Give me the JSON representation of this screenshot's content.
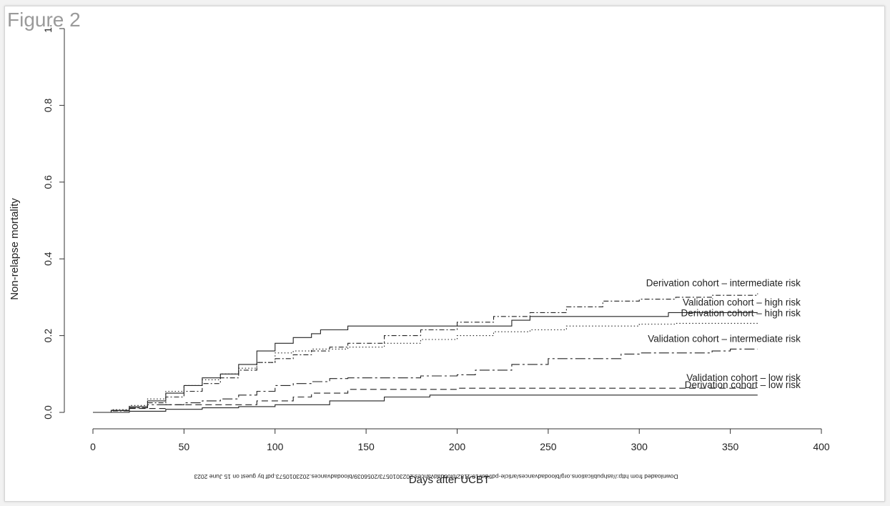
{
  "figure_label": "Figure 2",
  "watermark": "Downloaded from http://ashpublications.org/bloodadvances/article-pdf/doi/10.1182/bloodadvances.2023010573/2056039/bloodadvances.2023010573.pdf by guest on 15 June 2023",
  "chart_data": {
    "type": "line",
    "title": "",
    "xlabel": "Days after UCBT",
    "ylabel": "Non-relapse mortality",
    "xlim": [
      0,
      400
    ],
    "ylim": [
      0,
      1
    ],
    "xticks": [
      0,
      50,
      100,
      150,
      200,
      250,
      300,
      350,
      400
    ],
    "yticks": [
      0.0,
      0.2,
      0.4,
      0.6,
      0.8,
      1.0
    ],
    "ytick_labels": [
      "0.0",
      "0.2",
      "0.4",
      "0.6",
      "0.8",
      "1."
    ],
    "grid": false,
    "legend": "labels at line ends",
    "series": [
      {
        "name": "Derivation cohort – intermediate risk",
        "linestyle": "dashdot",
        "x": [
          0,
          10,
          20,
          30,
          40,
          50,
          60,
          70,
          80,
          90,
          100,
          110,
          120,
          130,
          140,
          160,
          180,
          200,
          220,
          240,
          260,
          280,
          300,
          320,
          340,
          365
        ],
        "y": [
          0,
          0.004,
          0.012,
          0.025,
          0.04,
          0.055,
          0.075,
          0.09,
          0.11,
          0.13,
          0.14,
          0.15,
          0.16,
          0.17,
          0.18,
          0.2,
          0.215,
          0.235,
          0.25,
          0.26,
          0.275,
          0.29,
          0.295,
          0.3,
          0.305,
          0.31
        ]
      },
      {
        "name": "Validation cohort – high risk",
        "linestyle": "solid",
        "x": [
          0,
          10,
          20,
          30,
          40,
          50,
          60,
          70,
          80,
          90,
          100,
          110,
          120,
          125,
          140,
          200,
          230,
          240,
          316,
          365
        ],
        "y": [
          0,
          0.005,
          0.015,
          0.03,
          0.05,
          0.07,
          0.09,
          0.1,
          0.125,
          0.16,
          0.18,
          0.195,
          0.205,
          0.215,
          0.225,
          0.225,
          0.24,
          0.25,
          0.26,
          0.26
        ]
      },
      {
        "name": "Derivation cohort – high risk",
        "linestyle": "dotted",
        "x": [
          0,
          10,
          20,
          30,
          40,
          50,
          60,
          70,
          80,
          90,
          100,
          110,
          120,
          140,
          160,
          180,
          200,
          220,
          240,
          260,
          300,
          320,
          365
        ],
        "y": [
          0,
          0.007,
          0.018,
          0.035,
          0.055,
          0.07,
          0.085,
          0.1,
          0.115,
          0.13,
          0.155,
          0.16,
          0.165,
          0.17,
          0.18,
          0.19,
          0.2,
          0.21,
          0.215,
          0.225,
          0.23,
          0.232,
          0.232
        ]
      },
      {
        "name": "Validation cohort – intermediate risk",
        "linestyle": "longdashdot",
        "x": [
          0,
          10,
          20,
          30,
          50,
          60,
          70,
          80,
          90,
          100,
          110,
          120,
          130,
          140,
          160,
          180,
          200,
          210,
          230,
          250,
          290,
          300,
          320,
          340,
          350,
          365
        ],
        "y": [
          0,
          0.005,
          0.012,
          0.02,
          0.025,
          0.03,
          0.035,
          0.045,
          0.055,
          0.07,
          0.075,
          0.08,
          0.088,
          0.09,
          0.09,
          0.095,
          0.098,
          0.11,
          0.125,
          0.14,
          0.152,
          0.155,
          0.155,
          0.16,
          0.165,
          0.165
        ]
      },
      {
        "name": "Validation cohort – low risk",
        "linestyle": "dashed",
        "x": [
          0,
          10,
          20,
          40,
          90,
          110,
          120,
          140,
          200,
          300,
          365
        ],
        "y": [
          0,
          0.005,
          0.01,
          0.02,
          0.03,
          0.04,
          0.05,
          0.06,
          0.063,
          0.063,
          0.063
        ]
      },
      {
        "name": "Derivation cohort – low risk",
        "linestyle": "solid",
        "x": [
          0,
          20,
          40,
          60,
          80,
          100,
          130,
          160,
          185,
          200,
          300,
          365
        ],
        "y": [
          0,
          0.003,
          0.008,
          0.012,
          0.015,
          0.02,
          0.03,
          0.04,
          0.045,
          0.045,
          0.045,
          0.045
        ]
      }
    ]
  }
}
